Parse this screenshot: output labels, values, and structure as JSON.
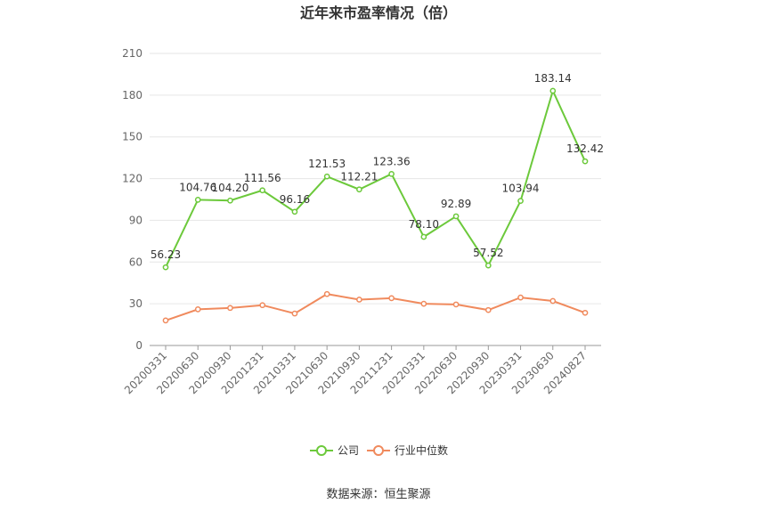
{
  "chart_data": {
    "type": "line",
    "title": "近年来市盈率情况（倍）",
    "categories": [
      "20200331",
      "20200630",
      "20200930",
      "20201231",
      "20210331",
      "20210630",
      "20210930",
      "20211231",
      "20220331",
      "20220630",
      "20220930",
      "20230331",
      "20230630",
      "20240827"
    ],
    "series": [
      {
        "name": "公司",
        "color": "#6cc93b",
        "values": [
          56.23,
          104.76,
          104.2,
          111.56,
          96.16,
          121.53,
          112.21,
          123.36,
          78.1,
          92.89,
          57.52,
          103.94,
          183.14,
          132.42
        ],
        "labels": [
          "56.23",
          "104.76",
          "104.20",
          "111.56",
          "96.16",
          "121.53",
          "112.21",
          "123.36",
          "78.10",
          "92.89",
          "57.52",
          "103.94",
          "183.14",
          "132.42"
        ]
      },
      {
        "name": "行业中位数",
        "color": "#f08a5d",
        "values": [
          18,
          26,
          27,
          29,
          23,
          37,
          33,
          34,
          30,
          29.5,
          25.5,
          34.5,
          32,
          23.5
        ]
      }
    ],
    "yticks": [
      "0",
      "30",
      "60",
      "90",
      "120",
      "150",
      "180",
      "210"
    ],
    "ylim": [
      0,
      210
    ],
    "grid": true,
    "legend": "bottom-center"
  },
  "source": "数据来源：恒生聚源"
}
